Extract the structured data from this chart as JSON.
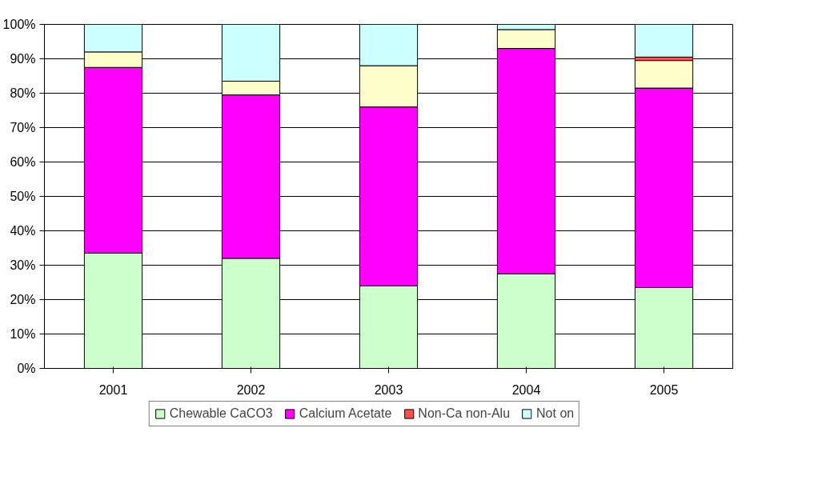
{
  "chart_data": {
    "type": "bar",
    "stacked": true,
    "categories": [
      "2001",
      "2002",
      "2003",
      "2004",
      "2005"
    ],
    "series": [
      {
        "name": "Chewable CaCO3",
        "color": "#ccffcc",
        "values": [
          33.5,
          32,
          24,
          27.5,
          23.5
        ]
      },
      {
        "name": "Calcium Acetate",
        "color": "#ff00ff",
        "values": [
          54,
          47.5,
          52,
          65.5,
          58
        ]
      },
      {
        "color": "#ffffcc",
        "values": [
          4.5,
          4,
          12,
          5.5,
          8
        ]
      },
      {
        "name": "Non-Ca non-Alu",
        "color": "#ff5050",
        "values": [
          0,
          0,
          0,
          0,
          1
        ]
      },
      {
        "name": "Not on",
        "color": "#ccffff",
        "values": [
          8,
          16.5,
          12,
          1.5,
          9.5
        ]
      }
    ],
    "ylim": [
      0,
      100
    ],
    "yticks": [
      {
        "value": 0,
        "label": "0%"
      },
      {
        "value": 10,
        "label": "10%"
      },
      {
        "value": 20,
        "label": "20%"
      },
      {
        "value": 30,
        "label": "30%"
      },
      {
        "value": 40,
        "label": "40%"
      },
      {
        "value": 50,
        "label": "50%"
      },
      {
        "value": 60,
        "label": "60%"
      },
      {
        "value": 70,
        "label": "70%"
      },
      {
        "value": 80,
        "label": "80%"
      },
      {
        "value": 90,
        "label": "90%"
      },
      {
        "value": 100,
        "label": "100%"
      }
    ],
    "grid": "y",
    "legend": "bottom"
  }
}
